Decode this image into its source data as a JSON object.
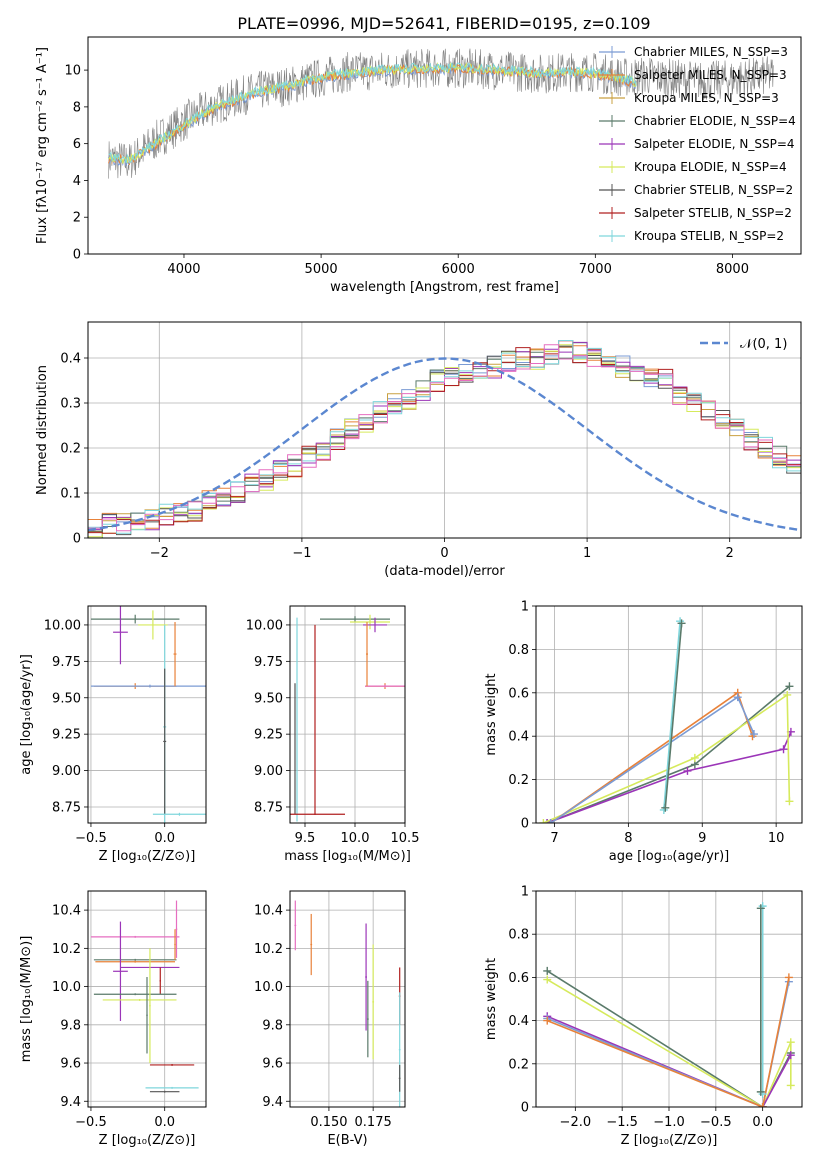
{
  "figure_title": "PLATE=0996, MJD=52641, FIBERID=0195, z=0.109",
  "colors": {
    "chabrier_miles": "#7b9bd4",
    "salpeter_miles": "#e8823a",
    "kroupa_miles": "#c9a040",
    "chabrier_elodie": "#5a7a6a",
    "salpeter_elodie": "#9b35b8",
    "kroupa_elodie": "#d6ea5c",
    "chabrier_stelib": "#555555",
    "salpeter_stelib": "#b02020",
    "kroupa_stelib": "#7fd6dc",
    "data": "#808080",
    "normal_curve": "#5b87d0",
    "extra_pink": "#e66ec0",
    "grid": "#b0b0b0"
  },
  "chart_data": [
    {
      "id": "spectrum",
      "type": "line",
      "title": "PLATE=0996, MJD=52641, FIBERID=0195, z=0.109",
      "xlabel": "wavelength [Angstrom, rest frame]",
      "ylabel": "Flux [fλ10⁻¹⁷ erg cm⁻² s⁻¹ A⁻¹]",
      "xlim": [
        3300,
        8500
      ],
      "ylim": [
        0,
        11.8
      ],
      "xticks": [
        4000,
        5000,
        6000,
        7000,
        8000
      ],
      "yticks": [
        0,
        2,
        4,
        6,
        8,
        10
      ],
      "legend_position": "right",
      "legend": [
        "Chabrier MILES, N_SSP=3",
        "Salpeter MILES, N_SSP=3",
        "Kroupa MILES, N_SSP=3",
        "Chabrier ELODIE, N_SSP=4",
        "Salpeter ELODIE, N_SSP=4",
        "Kroupa ELODIE, N_SSP=4",
        "Chabrier STELIB, N_SSP=2",
        "Salpeter STELIB, N_SSP=2",
        "Kroupa STELIB, N_SSP=2"
      ],
      "data_curve": {
        "x": [
          3450,
          3600,
          3800,
          4000,
          4200,
          4500,
          4800,
          5000,
          5200,
          5500,
          5800,
          6000,
          6300,
          6600,
          6800,
          7000,
          7200,
          7400,
          7600,
          7800,
          8000,
          8300
        ],
        "y": [
          5.2,
          5.0,
          6.2,
          7.2,
          8.0,
          8.8,
          9.2,
          9.6,
          9.9,
          10.0,
          10.1,
          10.1,
          10.0,
          9.8,
          9.9,
          9.9,
          9.6,
          9.7,
          9.5,
          9.4,
          9.5,
          9.7
        ]
      },
      "model_curve": {
        "x": [
          3450,
          3600,
          3800,
          4000,
          4200,
          4500,
          4800,
          5000,
          5200,
          5500,
          5800,
          6000,
          6300,
          6600,
          6800,
          7000,
          7200,
          7300
        ],
        "y": [
          5.2,
          5.1,
          6.0,
          7.0,
          7.9,
          8.7,
          9.2,
          9.6,
          9.8,
          10.0,
          10.1,
          10.1,
          10.0,
          9.8,
          9.9,
          9.8,
          9.5,
          9.3
        ]
      }
    },
    {
      "id": "residuals",
      "type": "line",
      "xlabel": "(data-model)/error",
      "ylabel": "Normed distribution",
      "xlim": [
        -2.5,
        2.5
      ],
      "ylim": [
        0,
        0.48
      ],
      "xticks": [
        -2,
        -1,
        0,
        1,
        2
      ],
      "yticks": [
        0.0,
        0.1,
        0.2,
        0.3,
        0.4
      ],
      "legend": [
        "𝒩(0, 1)"
      ],
      "legend_position": "top-right",
      "bin_width": 0.1,
      "bins_start": -2.5,
      "hist_reference": [
        0.02,
        0.03,
        0.03,
        0.04,
        0.04,
        0.05,
        0.06,
        0.06,
        0.08,
        0.09,
        0.1,
        0.12,
        0.13,
        0.15,
        0.16,
        0.18,
        0.19,
        0.22,
        0.24,
        0.26,
        0.28,
        0.3,
        0.31,
        0.33,
        0.35,
        0.36,
        0.37,
        0.37,
        0.38,
        0.39,
        0.4,
        0.4,
        0.41,
        0.42,
        0.41,
        0.4,
        0.39,
        0.38,
        0.37,
        0.36,
        0.35,
        0.32,
        0.3,
        0.28,
        0.26,
        0.24,
        0.22,
        0.2,
        0.18,
        0.16
      ]
    },
    {
      "id": "age_vs_Z",
      "type": "scatter",
      "xlabel": "Z [log₁₀(Z/Z⊙)]",
      "ylabel": "age  [log₁₀(age/yr)]",
      "xlim": [
        -0.52,
        0.28
      ],
      "ylim": [
        8.64,
        10.13
      ],
      "xticks": [
        -0.5,
        0.0
      ],
      "xtick_labels": [
        "−0.5",
        "0.0"
      ],
      "yticks": [
        8.75,
        9.0,
        9.25,
        9.5,
        9.75,
        10.0
      ],
      "yticks_labels": [
        "8.75",
        "9.00",
        "9.25",
        "9.50",
        "9.75",
        "10.00"
      ],
      "errorbars": [
        {
          "color": "chabrier_elodie",
          "x": -0.2,
          "y": 10.04,
          "xerr": 0.3,
          "yerr": 0.03
        },
        {
          "color": "salpeter_elodie",
          "x": -0.3,
          "y": 9.95,
          "xerr": 0.05,
          "yerr": 0.22
        },
        {
          "color": "kroupa_elodie",
          "x": -0.08,
          "y": 10.0,
          "xerr": 0.1,
          "yerr": 0.1
        },
        {
          "color": "salpeter_miles",
          "x": -0.2,
          "y": 9.58,
          "xerr": 0.28,
          "yerr": 0.02
        },
        {
          "color": "chabrier_miles",
          "x": -0.1,
          "y": 9.58,
          "xerr": 0.4,
          "yerr": 0.01
        },
        {
          "color": "salpeter_miles",
          "x": 0.07,
          "y": 9.8,
          "xerr": 0.01,
          "yerr": 0.22
        },
        {
          "color": "kroupa_stelib",
          "x": 0.0,
          "y": 9.3,
          "xerr": 0.01,
          "yerr": 0.7
        },
        {
          "color": "chabrier_stelib",
          "x": 0.0,
          "y": 9.2,
          "xerr": 0.01,
          "yerr": 0.5
        },
        {
          "color": "kroupa_stelib",
          "x": 0.1,
          "y": 8.7,
          "xerr": 0.18,
          "yerr": 0.01
        }
      ]
    },
    {
      "id": "age_vs_mass",
      "type": "scatter",
      "xlabel": "mass [log₁₀(M/M⊙)]",
      "xlim": [
        9.35,
        10.5
      ],
      "ylim": [
        8.64,
        10.13
      ],
      "xticks": [
        9.5,
        10.0,
        10.5
      ],
      "xtick_labels": [
        "9.5",
        "10.0",
        "10.5"
      ],
      "yticks": [
        8.75,
        9.0,
        9.25,
        9.5,
        9.75,
        10.0
      ],
      "yticks_labels": [
        "8.75",
        "9.00",
        "9.25",
        "9.50",
        "9.75",
        "10.00"
      ],
      "errorbars": [
        {
          "color": "kroupa_stelib",
          "x": 9.42,
          "y": 9.35,
          "xerr": 0.005,
          "yerr": 0.7
        },
        {
          "color": "chabrier_stelib",
          "x": 9.4,
          "y": 9.15,
          "xerr": 0.005,
          "yerr": 0.45
        },
        {
          "color": "salpeter_stelib",
          "x": 9.6,
          "y": 9.35,
          "xerr": 0.005,
          "yerr": 0.65
        },
        {
          "color": "salpeter_stelib",
          "x": 9.6,
          "y": 8.7,
          "xerr": 0.3,
          "yerr": 0.005
        },
        {
          "color": "chabrier_elodie",
          "x": 10.0,
          "y": 10.04,
          "xerr": 0.35,
          "yerr": 0.02
        },
        {
          "color": "kroupa_elodie",
          "x": 10.15,
          "y": 10.02,
          "xerr": 0.2,
          "yerr": 0.05
        },
        {
          "color": "salpeter_elodie",
          "x": 10.2,
          "y": 10.0,
          "xerr": 0.12,
          "yerr": 0.05
        },
        {
          "color": "salpeter_miles",
          "x": 10.3,
          "y": 9.58,
          "xerr": 0.2,
          "yerr": 0.02
        },
        {
          "color": "extra_pink",
          "x": 10.3,
          "y": 9.58,
          "xerr": 0.2,
          "yerr": 0.01
        },
        {
          "color": "salpeter_miles",
          "x": 10.12,
          "y": 9.8,
          "xerr": 0.01,
          "yerr": 0.22
        }
      ]
    },
    {
      "id": "massweight_vs_age",
      "type": "line",
      "xlabel": "age  [log₁₀(age/yr)]",
      "ylabel": "mass weight",
      "xlim": [
        6.75,
        10.35
      ],
      "ylim": [
        0,
        1.0
      ],
      "xticks": [
        7,
        8,
        9,
        10
      ],
      "yticks": [
        0.0,
        0.2,
        0.4,
        0.6,
        0.8,
        1.0
      ],
      "series": [
        {
          "color": "chabrier_elodie",
          "x": [
            6.9,
            8.9,
            10.18
          ],
          "y": [
            0.0,
            0.27,
            0.63
          ]
        },
        {
          "color": "salpeter_elodie",
          "x": [
            6.9,
            8.8,
            10.1,
            10.2
          ],
          "y": [
            0.0,
            0.24,
            0.34,
            0.42
          ]
        },
        {
          "color": "kroupa_elodie",
          "x": [
            6.85,
            8.9,
            10.15,
            10.18
          ],
          "y": [
            0.0,
            0.3,
            0.59,
            0.1
          ]
        },
        {
          "color": "salpeter_miles",
          "x": [
            6.95,
            9.48,
            9.68
          ],
          "y": [
            0.0,
            0.6,
            0.4
          ]
        },
        {
          "color": "chabrier_miles",
          "x": [
            6.95,
            9.48,
            9.7
          ],
          "y": [
            0.0,
            0.58,
            0.41
          ]
        },
        {
          "color": "kroupa_stelib",
          "x": [
            8.48,
            8.7
          ],
          "y": [
            0.06,
            0.93
          ]
        },
        {
          "color": "chabrier_elodie",
          "x": [
            8.5,
            8.72
          ],
          "y": [
            0.07,
            0.92
          ]
        }
      ]
    },
    {
      "id": "mass_vs_Z",
      "type": "scatter",
      "xlabel": "Z [log₁₀(Z/Z⊙)]",
      "ylabel": "mass [log₁₀(M/M⊙)]",
      "xlim": [
        -0.52,
        0.28
      ],
      "ylim": [
        9.37,
        10.5
      ],
      "xticks": [
        -0.5,
        0.0
      ],
      "xtick_labels": [
        "−0.5",
        "0.0"
      ],
      "yticks": [
        9.4,
        9.6,
        9.8,
        10.0,
        10.2,
        10.4
      ],
      "yticks_labels": [
        "9.4",
        "9.6",
        "9.8",
        "10.0",
        "10.2",
        "10.4"
      ],
      "errorbars": [
        {
          "color": "extra_pink",
          "x": -0.2,
          "y": 10.26,
          "xerr": 0.3,
          "yerr": 0.005
        },
        {
          "color": "extra_pink",
          "x": 0.08,
          "y": 10.3,
          "xerr": 0.005,
          "yerr": 0.15
        },
        {
          "color": "chabrier_elodie",
          "x": -0.2,
          "y": 10.14,
          "xerr": 0.28,
          "yerr": 0.005
        },
        {
          "color": "salpeter_miles",
          "x": -0.2,
          "y": 10.13,
          "xerr": 0.27,
          "yerr": 0.005
        },
        {
          "color": "salpeter_elodie",
          "x": -0.3,
          "y": 10.08,
          "xerr": 0.05,
          "yerr": 0.26
        },
        {
          "color": "salpeter_elodie",
          "x": -0.1,
          "y": 10.1,
          "xerr": 0.2,
          "yerr": 0.005
        },
        {
          "color": "salpeter_stelib",
          "x": -0.03,
          "y": 10.03,
          "xerr": 0.005,
          "yerr": 0.07
        },
        {
          "color": "chabrier_elodie",
          "x": -0.2,
          "y": 9.96,
          "xerr": 0.28,
          "yerr": 0.005
        },
        {
          "color": "kroupa_elodie",
          "x": -0.17,
          "y": 9.93,
          "xerr": 0.25,
          "yerr": 0.005
        },
        {
          "color": "chabrier_elodie",
          "x": -0.12,
          "y": 9.85,
          "xerr": 0.005,
          "yerr": 0.2
        },
        {
          "color": "kroupa_elodie",
          "x": -0.1,
          "y": 9.9,
          "xerr": 0.005,
          "yerr": 0.3
        },
        {
          "color": "salpeter_stelib",
          "x": 0.05,
          "y": 9.59,
          "xerr": 0.15,
          "yerr": 0.005
        },
        {
          "color": "kroupa_stelib",
          "x": 0.05,
          "y": 9.47,
          "xerr": 0.18,
          "yerr": 0.005
        },
        {
          "color": "chabrier_stelib",
          "x": 0.0,
          "y": 9.45,
          "xerr": 0.1,
          "yerr": 0.005
        },
        {
          "color": "salpeter_miles",
          "x": 0.07,
          "y": 10.22,
          "xerr": 0.005,
          "yerr": 0.08
        }
      ]
    },
    {
      "id": "mass_vs_EBV",
      "type": "scatter",
      "xlabel": "E(B-V)",
      "xlim": [
        0.128,
        0.193
      ],
      "ylim": [
        9.37,
        10.5
      ],
      "xticks": [
        0.15,
        0.175
      ],
      "xtick_labels": [
        "0.150",
        "0.175"
      ],
      "yticks": [
        9.4,
        9.6,
        9.8,
        10.0,
        10.2,
        10.4
      ],
      "yticks_labels": [
        "9.4",
        "9.6",
        "9.8",
        "10.0",
        "10.2",
        "10.4"
      ],
      "errorbars": [
        {
          "color": "extra_pink",
          "x": 0.131,
          "y": 10.32,
          "xerr": 0.0005,
          "yerr": 0.13
        },
        {
          "color": "salpeter_miles",
          "x": 0.14,
          "y": 10.22,
          "xerr": 0.0005,
          "yerr": 0.16
        },
        {
          "color": "salpeter_elodie",
          "x": 0.171,
          "y": 10.05,
          "xerr": 0.0005,
          "yerr": 0.28
        },
        {
          "color": "chabrier_elodie",
          "x": 0.172,
          "y": 9.83,
          "xerr": 0.0005,
          "yerr": 0.2
        },
        {
          "color": "kroupa_elodie",
          "x": 0.175,
          "y": 9.92,
          "xerr": 0.0005,
          "yerr": 0.3
        },
        {
          "color": "salpeter_stelib",
          "x": 0.19,
          "y": 9.95,
          "xerr": 0.0005,
          "yerr": 0.15
        },
        {
          "color": "kroupa_stelib",
          "x": 0.19,
          "y": 9.67,
          "xerr": 0.0005,
          "yerr": 0.3
        },
        {
          "color": "chabrier_stelib",
          "x": 0.19,
          "y": 9.52,
          "xerr": 0.0005,
          "yerr": 0.07
        }
      ]
    },
    {
      "id": "massweight_vs_Z",
      "type": "line",
      "xlabel": "Z [log₁₀(Z/Z⊙)]",
      "ylabel": "mass weight",
      "xlim": [
        -2.42,
        0.42
      ],
      "ylim": [
        0,
        1.0
      ],
      "xticks": [
        -2.0,
        -1.5,
        -1.0,
        -0.5,
        0.0
      ],
      "xtick_labels": [
        "−2.0",
        "−1.5",
        "−1.0",
        "−0.5",
        "0.0"
      ],
      "yticks": [
        0.0,
        0.2,
        0.4,
        0.6,
        0.8,
        1.0
      ],
      "series": [
        {
          "color": "chabrier_elodie",
          "x": [
            -2.3,
            0.0,
            0.3
          ],
          "y": [
            0.63,
            0.0,
            0.25
          ]
        },
        {
          "color": "kroupa_elodie",
          "x": [
            -2.3,
            0.0,
            0.3,
            0.3
          ],
          "y": [
            0.59,
            0.0,
            0.3,
            0.1
          ]
        },
        {
          "color": "salpeter_elodie",
          "x": [
            -2.3,
            0.0,
            0.3
          ],
          "y": [
            0.42,
            0.0,
            0.24
          ]
        },
        {
          "color": "chabrier_miles",
          "x": [
            -2.3,
            0.0,
            0.28
          ],
          "y": [
            0.41,
            0.0,
            0.58
          ]
        },
        {
          "color": "salpeter_miles",
          "x": [
            -2.3,
            0.0,
            0.28
          ],
          "y": [
            0.4,
            0.0,
            0.6
          ]
        },
        {
          "color": "kroupa_stelib",
          "x": [
            0.0,
            0.0
          ],
          "y": [
            0.06,
            0.93
          ]
        },
        {
          "color": "chabrier_elodie",
          "x": [
            -0.02,
            -0.02
          ],
          "y": [
            0.07,
            0.92
          ]
        }
      ]
    }
  ]
}
